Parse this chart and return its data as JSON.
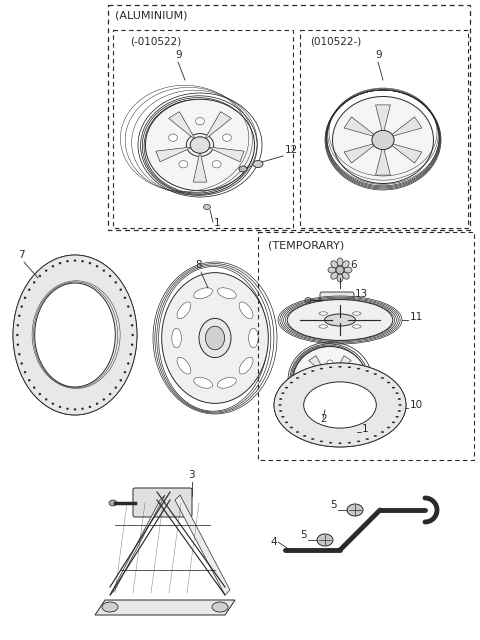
{
  "bg_color": "#ffffff",
  "line_color": "#2a2a2a",
  "box1_label": "(ALUMINIUM)",
  "box1_sub1": "(-010522)",
  "box1_sub2": "(010522-)",
  "box2_label": "(TEMPORARY)",
  "figsize": [
    4.8,
    6.4
  ],
  "dpi": 100
}
